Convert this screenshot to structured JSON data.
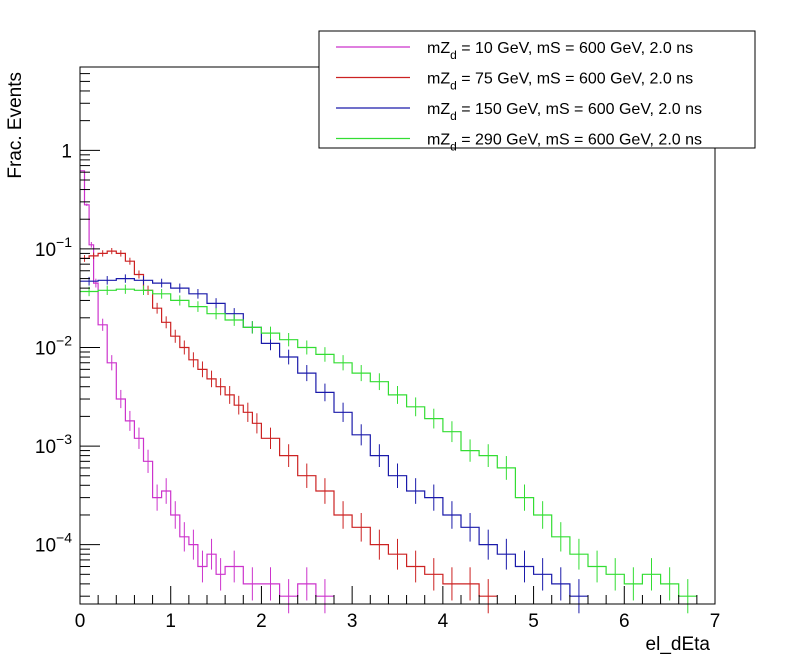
{
  "chart_data": {
    "type": "line",
    "xlabel": "el_dEta",
    "ylabel": "Frac. Events",
    "xlim": [
      0,
      7
    ],
    "ylim": [
      2.5e-05,
      7
    ],
    "yscale": "log",
    "grid": false,
    "legend_position": "top-right",
    "x_ticks": [
      "0",
      "1",
      "2",
      "3",
      "4",
      "5",
      "6",
      "7"
    ],
    "y_ticks": [
      {
        "value": 1,
        "base": "1",
        "exp": ""
      },
      {
        "value": 0.1,
        "base": "10",
        "exp": "−1"
      },
      {
        "value": 0.01,
        "base": "10",
        "exp": "−2"
      },
      {
        "value": 0.001,
        "base": "10",
        "exp": "−3"
      },
      {
        "value": 0.0001,
        "base": "10",
        "exp": "−4"
      }
    ],
    "series": [
      {
        "name": "mZd = 10 GeV, mS = 600 GeV, 2.0 ns",
        "legend": {
          "pre": "mZ",
          "sub": "d",
          "post": " = 10 GeV, mS = 600 GeV, 2.0 ns"
        },
        "color": "#cc33cc",
        "x": [
          0,
          0.05,
          0.1,
          0.15,
          0.2,
          0.3,
          0.4,
          0.5,
          0.6,
          0.7,
          0.8,
          0.9,
          1.0,
          1.1,
          1.2,
          1.3,
          1.4,
          1.5,
          1.6,
          1.8,
          2.0,
          2.2,
          2.4,
          2.6
        ],
        "y": [
          0.62,
          0.28,
          0.11,
          0.045,
          0.017,
          0.007,
          0.003,
          0.0018,
          0.0012,
          0.0007,
          0.0003,
          0.00035,
          0.0002,
          0.00012,
          0.0001,
          6e-05,
          8e-05,
          5e-05,
          6e-05,
          4e-05,
          4e-05,
          3e-05,
          4e-05,
          3e-05
        ]
      },
      {
        "name": "mZd = 75 GeV, mS = 600 GeV, 2.0 ns",
        "legend": {
          "pre": "mZ",
          "sub": "d",
          "post": " = 75 GeV, mS = 600 GeV, 2.0 ns"
        },
        "color": "#cc2222",
        "x": [
          0,
          0.1,
          0.2,
          0.3,
          0.4,
          0.5,
          0.6,
          0.7,
          0.8,
          0.9,
          1.0,
          1.1,
          1.2,
          1.3,
          1.4,
          1.5,
          1.6,
          1.7,
          1.8,
          1.9,
          2.0,
          2.2,
          2.4,
          2.6,
          2.8,
          3.0,
          3.2,
          3.4,
          3.6,
          3.8,
          4.0,
          4.2,
          4.4
        ],
        "y": [
          0.08,
          0.085,
          0.09,
          0.095,
          0.09,
          0.075,
          0.055,
          0.038,
          0.025,
          0.018,
          0.013,
          0.01,
          0.0075,
          0.006,
          0.0048,
          0.004,
          0.0033,
          0.0026,
          0.0022,
          0.0017,
          0.0012,
          0.0008,
          0.0005,
          0.00035,
          0.0002,
          0.00015,
          0.0001,
          8e-05,
          6e-05,
          5e-05,
          4e-05,
          4e-05,
          3e-05
        ]
      },
      {
        "name": "mZd = 150 GeV, mS = 600 GeV, 2.0 ns",
        "legend": {
          "pre": "mZ",
          "sub": "d",
          "post": " = 150 GeV, mS = 600 GeV, 2.0 ns"
        },
        "color": "#1a1aaa",
        "x": [
          0,
          0.2,
          0.4,
          0.6,
          0.8,
          1.0,
          1.2,
          1.4,
          1.6,
          1.8,
          2.0,
          2.2,
          2.4,
          2.6,
          2.8,
          3.0,
          3.2,
          3.4,
          3.6,
          3.8,
          4.0,
          4.2,
          4.4,
          4.6,
          4.8,
          5.0,
          5.2,
          5.4
        ],
        "y": [
          0.047,
          0.048,
          0.05,
          0.048,
          0.045,
          0.04,
          0.035,
          0.028,
          0.022,
          0.016,
          0.011,
          0.008,
          0.0055,
          0.0035,
          0.0022,
          0.0013,
          0.0008,
          0.0005,
          0.00035,
          0.0003,
          0.0002,
          0.00015,
          0.0001,
          8e-05,
          6e-05,
          5e-05,
          4e-05,
          3e-05
        ]
      },
      {
        "name": "mZd = 290 GeV, mS = 600 GeV, 2.0 ns",
        "legend": {
          "pre": "mZ",
          "sub": "d",
          "post": " = 290 GeV, mS = 600 GeV, 2.0 ns"
        },
        "color": "#33dd33",
        "x": [
          0,
          0.2,
          0.4,
          0.6,
          0.8,
          1.0,
          1.2,
          1.4,
          1.6,
          1.8,
          2.0,
          2.2,
          2.4,
          2.6,
          2.8,
          3.0,
          3.2,
          3.4,
          3.6,
          3.8,
          4.0,
          4.2,
          4.4,
          4.6,
          4.8,
          5.0,
          5.2,
          5.4,
          5.6,
          5.8,
          6.0,
          6.2,
          6.4,
          6.6
        ],
        "y": [
          0.037,
          0.038,
          0.039,
          0.038,
          0.035,
          0.03,
          0.026,
          0.022,
          0.019,
          0.016,
          0.014,
          0.012,
          0.01,
          0.0085,
          0.007,
          0.0055,
          0.0045,
          0.0033,
          0.0025,
          0.0019,
          0.0014,
          0.0009,
          0.0008,
          0.0006,
          0.0003,
          0.0002,
          0.00012,
          8e-05,
          6e-05,
          5e-05,
          4e-05,
          5e-05,
          4e-05,
          3e-05
        ]
      }
    ]
  }
}
